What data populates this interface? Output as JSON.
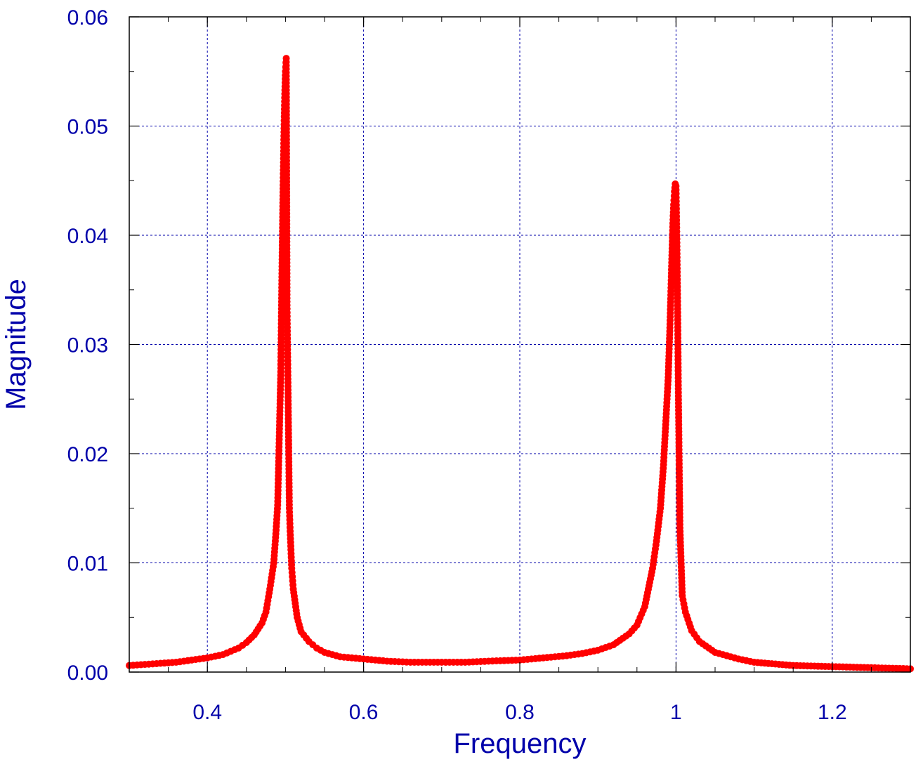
{
  "chart_data": {
    "type": "scatter",
    "title": "",
    "xlabel": "Frequency",
    "ylabel": "Magnitude",
    "xlim": [
      0.3,
      1.3
    ],
    "ylim": [
      0,
      0.06
    ],
    "x_ticks": [
      {
        "value": 0.4,
        "label": "0.4"
      },
      {
        "value": 0.6,
        "label": "0.6"
      },
      {
        "value": 0.8,
        "label": "0.8"
      },
      {
        "value": 1.0,
        "label": "1"
      },
      {
        "value": 1.2,
        "label": "1.2"
      }
    ],
    "y_ticks": [
      {
        "value": 0.0,
        "label": "0.00"
      },
      {
        "value": 0.01,
        "label": "0.01"
      },
      {
        "value": 0.02,
        "label": "0.02"
      },
      {
        "value": 0.03,
        "label": "0.03"
      },
      {
        "value": 0.04,
        "label": "0.04"
      },
      {
        "value": 0.05,
        "label": "0.05"
      },
      {
        "value": 0.06,
        "label": "0.06"
      }
    ],
    "grid": true,
    "legend": "none",
    "colors": {
      "text": "#0000aa",
      "grid": "#0000aa",
      "points": "#ff0000",
      "axis": "#000000"
    },
    "series": [
      {
        "color": "#ff0000",
        "x": [
          0.3,
          0.32,
          0.34,
          0.36,
          0.38,
          0.4,
          0.42,
          0.44,
          0.45,
          0.46,
          0.47,
          0.475,
          0.48,
          0.485,
          0.488,
          0.49,
          0.492,
          0.494,
          0.495,
          0.496,
          0.497,
          0.498,
          0.499,
          0.5,
          0.501,
          0.502,
          0.503,
          0.504,
          0.505,
          0.506,
          0.508,
          0.51,
          0.515,
          0.52,
          0.53,
          0.54,
          0.55,
          0.57,
          0.6,
          0.63,
          0.66,
          0.7,
          0.73,
          0.76,
          0.8,
          0.83,
          0.86,
          0.88,
          0.9,
          0.92,
          0.94,
          0.95,
          0.96,
          0.97,
          0.975,
          0.98,
          0.984,
          0.987,
          0.99,
          0.992,
          0.994,
          0.995,
          0.996,
          0.997,
          0.998,
          0.999,
          1.0,
          1.001,
          1.002,
          1.003,
          1.005,
          1.008,
          1.012,
          1.02,
          1.03,
          1.05,
          1.08,
          1.1,
          1.15,
          1.2,
          1.25,
          1.3
        ],
        "y": [
          0.0006,
          0.0007,
          0.0008,
          0.0009,
          0.0011,
          0.0013,
          0.0016,
          0.0022,
          0.0027,
          0.0034,
          0.0045,
          0.0055,
          0.0076,
          0.01,
          0.013,
          0.0153,
          0.0213,
          0.0275,
          0.0336,
          0.0394,
          0.0446,
          0.0491,
          0.0526,
          0.055,
          0.0562,
          0.0336,
          0.0275,
          0.0212,
          0.015,
          0.0129,
          0.0095,
          0.0076,
          0.005,
          0.0037,
          0.0028,
          0.0022,
          0.0018,
          0.0014,
          0.0012,
          0.001,
          0.0009,
          0.0009,
          0.0009,
          0.001,
          0.0011,
          0.0013,
          0.0015,
          0.0017,
          0.002,
          0.0025,
          0.0035,
          0.0043,
          0.006,
          0.0095,
          0.012,
          0.015,
          0.019,
          0.023,
          0.027,
          0.0312,
          0.0362,
          0.0388,
          0.0411,
          0.0428,
          0.044,
          0.0447,
          0.0445,
          0.04,
          0.0336,
          0.0256,
          0.0132,
          0.007,
          0.0055,
          0.0038,
          0.0028,
          0.0018,
          0.0012,
          0.0009,
          0.0006,
          0.0005,
          0.0004,
          0.0003
        ]
      }
    ]
  }
}
